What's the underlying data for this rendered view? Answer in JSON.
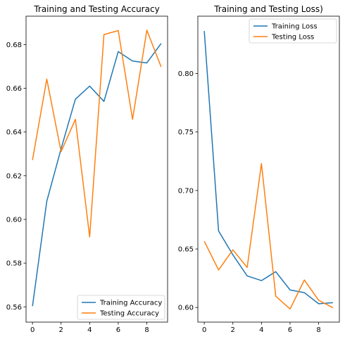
{
  "colors": {
    "train": "#1f77b4",
    "test": "#ff7f0e",
    "axis": "#000000",
    "legend_border": "#cccccc"
  },
  "chart_data": [
    {
      "type": "line",
      "title": "Training and Testing Accuracy",
      "xlabel": "",
      "ylabel": "",
      "x": [
        0,
        1,
        2,
        3,
        4,
        5,
        6,
        7,
        8,
        9
      ],
      "xlim": [
        -0.45,
        9.45
      ],
      "ylim": [
        0.553,
        0.693
      ],
      "xticks": [
        0,
        2,
        4,
        6,
        8
      ],
      "yticks": [
        0.56,
        0.58,
        0.6,
        0.62,
        0.64,
        0.66,
        0.68
      ],
      "ytick_labels": [
        "0.56",
        "0.58",
        "0.60",
        "0.62",
        "0.64",
        "0.66",
        "0.68"
      ],
      "legend_position": "lower-right",
      "grid": false,
      "series": [
        {
          "name": "Training Accuracy",
          "values": [
            0.5603,
            0.6083,
            0.6323,
            0.655,
            0.661,
            0.654,
            0.6768,
            0.6725,
            0.6716,
            0.6805
          ]
        },
        {
          "name": "Testing Accuracy",
          "values": [
            0.6272,
            0.6642,
            0.631,
            0.6458,
            0.592,
            0.6846,
            0.6864,
            0.6458,
            0.6866,
            0.6698
          ]
        }
      ]
    },
    {
      "type": "line",
      "title": "Training and Testing Loss)",
      "xlabel": "",
      "ylabel": "",
      "x": [
        0,
        1,
        2,
        3,
        4,
        5,
        6,
        7,
        8,
        9
      ],
      "xlim": [
        -0.45,
        9.45
      ],
      "ylim": [
        0.5875,
        0.849
      ],
      "xticks": [
        0,
        2,
        4,
        6,
        8
      ],
      "yticks": [
        0.6,
        0.65,
        0.7,
        0.75,
        0.8
      ],
      "ytick_labels": [
        "0.60",
        "0.65",
        "0.70",
        "0.75",
        "0.80"
      ],
      "legend_position": "upper-right",
      "grid": false,
      "series": [
        {
          "name": "Training Loss",
          "values": [
            0.8363,
            0.6654,
            0.645,
            0.627,
            0.623,
            0.6306,
            0.615,
            0.6127,
            0.6032,
            0.6041
          ]
        },
        {
          "name": "Testing Loss",
          "values": [
            0.6566,
            0.6321,
            0.6493,
            0.6342,
            0.723,
            0.6096,
            0.5987,
            0.6235,
            0.6062,
            0.5998
          ]
        }
      ]
    }
  ]
}
